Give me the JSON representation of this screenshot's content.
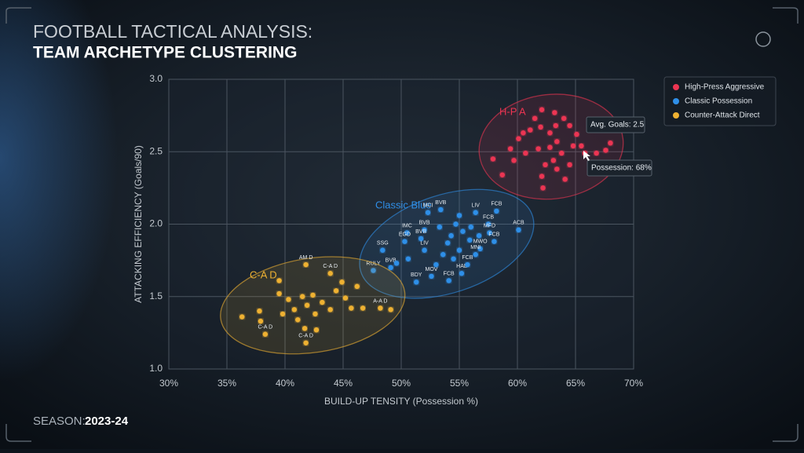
{
  "header": {
    "title_line1": "FOOTBALL TACTICAL ANALYSIS:",
    "title_line2": "TEAM ARCHETYPE CLUSTERING"
  },
  "footer": {
    "season_label": "SEASON:",
    "season": "2023-24"
  },
  "chart_data": {
    "type": "scatter",
    "x_label": "BUILD-UP TENSITY (Possession %)",
    "y_label": "ATTACKING EFFICIENCY (Goals/90)",
    "xlim": [
      30,
      70
    ],
    "xticks": [
      {
        "value": 30,
        "label": "30%"
      },
      {
        "value": 35,
        "label": "35%"
      },
      {
        "value": 40,
        "label": "40%"
      },
      {
        "value": 45,
        "label": "45%"
      },
      {
        "value": 50,
        "label": "50%"
      },
      {
        "value": 55,
        "label": "55%"
      },
      {
        "value": 60,
        "label": "60%"
      },
      {
        "value": 65,
        "label": "65%"
      },
      {
        "value": 70,
        "label": "70%"
      }
    ],
    "ylim": [
      1,
      3
    ],
    "yticks": [
      {
        "value": 1,
        "label": "1.0"
      },
      1.5,
      {
        "value": 2,
        "label": "2.0"
      },
      2.5,
      {
        "value": 3,
        "label": "3.0"
      }
    ],
    "grid": true,
    "legend": "top-right",
    "cluster_labels": [
      "H-P A",
      "Classic Blue",
      "C-A D"
    ],
    "tooltip": [
      "Avg. Goals: 2.5",
      "Possession: 68%"
    ],
    "series": [
      {
        "name": "High-Press Aggressive",
        "color": "#ec3552",
        "x": [
          57.9,
          58.7,
          59.4,
          60.1,
          60.5,
          61.1,
          61.5,
          62.1,
          63.2,
          64.0,
          64.5,
          65.1,
          65.5,
          65.8,
          66.8,
          67.6,
          68.0,
          62.8,
          63.4,
          63.8,
          63.1,
          62.4,
          62.1,
          62.2,
          64.1,
          63.4,
          61.8,
          60.7,
          59.7,
          64.5,
          62.8,
          64.8,
          63.3,
          62.0
        ],
        "values": [
          2.45,
          2.34,
          2.52,
          2.59,
          2.63,
          2.65,
          2.73,
          2.79,
          2.77,
          2.73,
          2.68,
          2.62,
          2.54,
          2.49,
          2.49,
          2.51,
          2.56,
          2.63,
          2.57,
          2.49,
          2.44,
          2.41,
          2.33,
          2.25,
          2.31,
          2.38,
          2.52,
          2.49,
          2.44,
          2.41,
          2.53,
          2.54,
          2.68,
          2.67
        ]
      },
      {
        "name": "Classic Possession",
        "color": "#2f8fe8",
        "x": [
          52.3,
          53.4,
          56.4,
          58.2,
          52.0,
          50.5,
          57.5,
          57.6,
          60.1,
          50.3,
          51.7,
          58.0,
          56.8,
          48.4,
          52.0,
          56.4,
          47.6,
          49.1,
          55.7,
          52.6,
          55.2,
          51.3,
          54.1,
          53.3,
          54.3,
          54.7,
          55.3,
          54.0,
          55.0,
          55.9,
          53.6,
          53.0,
          54.5,
          56.0,
          56.7,
          55.0,
          50.6,
          49.6
        ],
        "values": [
          2.08,
          2.1,
          2.08,
          2.09,
          1.96,
          1.94,
          2.0,
          1.94,
          1.96,
          1.88,
          1.9,
          1.88,
          1.83,
          1.82,
          1.82,
          1.79,
          1.68,
          1.7,
          1.72,
          1.64,
          1.66,
          1.6,
          1.61,
          1.98,
          1.92,
          2.0,
          1.95,
          1.87,
          1.82,
          1.89,
          1.79,
          1.72,
          1.76,
          1.98,
          1.92,
          2.06,
          1.76,
          1.73
        ],
        "labels": [
          "MCI",
          "BVB",
          "LIV",
          "FCB",
          "BVB",
          "IMC",
          "FCB",
          "MFD",
          "ACB",
          "EGD",
          "BVB",
          "FCB",
          "MWO",
          "SSG",
          "LIV",
          "MNI",
          "RULY",
          "BVB",
          "FCB",
          "MOV",
          "HAL",
          "BDY",
          "FCB",
          null,
          null,
          null,
          null,
          null,
          null,
          null,
          null,
          null,
          null,
          null,
          null,
          null,
          null,
          null
        ]
      },
      {
        "name": "Counter-Attack Direct",
        "color": "#eeb132",
        "x": [
          41.8,
          43.9,
          38.3,
          41.8,
          48.2,
          36.3,
          37.8,
          39.5,
          39.5,
          40.3,
          40.8,
          41.1,
          41.5,
          41.9,
          42.4,
          42.6,
          43.2,
          43.9,
          44.4,
          44.9,
          45.2,
          45.7,
          46.2,
          46.7,
          42.7,
          41.7,
          37.9,
          39.8,
          49.1
        ],
        "values": [
          1.72,
          1.66,
          1.24,
          1.18,
          1.42,
          1.36,
          1.4,
          1.52,
          1.61,
          1.48,
          1.41,
          1.34,
          1.5,
          1.44,
          1.51,
          1.38,
          1.46,
          1.41,
          1.54,
          1.6,
          1.49,
          1.42,
          1.57,
          1.42,
          1.27,
          1.28,
          1.33,
          1.38,
          1.41
        ],
        "labels": [
          "AM D",
          "C-A D",
          "C-A D",
          "C-A D",
          "A-A D",
          null,
          null,
          null,
          null,
          null,
          null,
          null,
          null,
          null,
          null,
          null,
          null,
          null,
          null,
          null,
          null,
          null,
          null,
          null,
          null,
          null,
          null,
          null,
          null
        ]
      }
    ]
  }
}
